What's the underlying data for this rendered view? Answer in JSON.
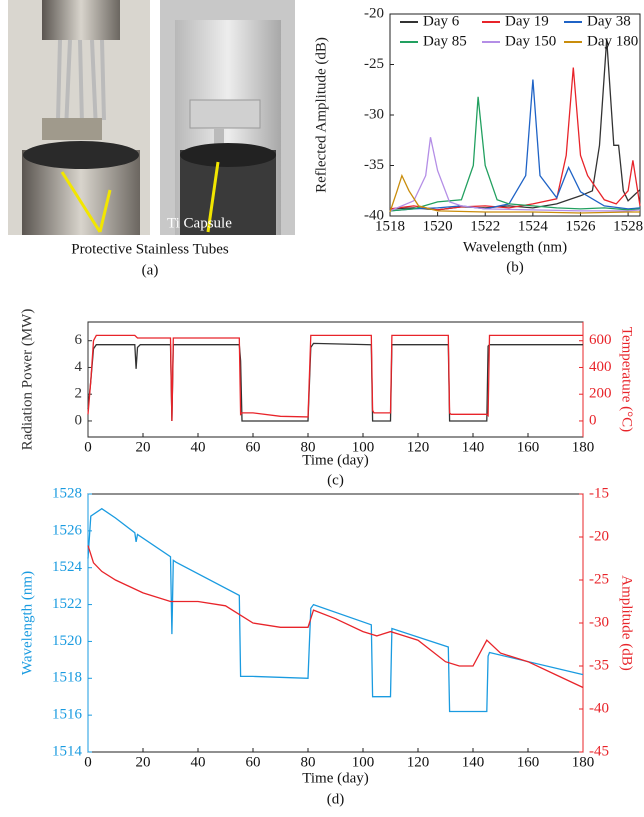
{
  "panel_a": {
    "labels": [
      "Protective Stainless Tubes",
      "Ti Capsule"
    ],
    "caption": "(a)"
  },
  "chart_data": [
    {
      "type": "line",
      "caption": "(b)",
      "xlabel": "Wavelength (nm)",
      "ylabel": "Reflected Amplitude (dB)",
      "legend": "top",
      "xlim": [
        1518,
        1528.5
      ],
      "xticks": [
        1518,
        1520,
        1522,
        1524,
        1526,
        1528
      ],
      "ylim": [
        -40,
        -20
      ],
      "yticks": [
        -40,
        -35,
        -30,
        -25,
        -20
      ],
      "series": [
        {
          "name": "Day 6",
          "color": "#333333",
          "x": [
            1518,
            1519,
            1520,
            1521,
            1522,
            1523,
            1524,
            1525,
            1526,
            1526.5,
            1526.8,
            1527.1,
            1527.4,
            1527.6,
            1527.8,
            1528,
            1528.5
          ],
          "values": [
            -39.3,
            -39.2,
            -39.4,
            -39.1,
            -39.2,
            -39.0,
            -39.2,
            -38.8,
            -38.0,
            -37.5,
            -33,
            -22.5,
            -33,
            -33,
            -37.5,
            -38.5,
            -37.4
          ]
        },
        {
          "name": "Day 19",
          "color": "#e8242a",
          "x": [
            1518,
            1519,
            1520,
            1521,
            1522,
            1523,
            1524,
            1525,
            1525.4,
            1525.7,
            1526,
            1526.3,
            1527,
            1527.5,
            1528,
            1528.2,
            1528.5
          ],
          "values": [
            -39.3,
            -39.0,
            -39.4,
            -39.1,
            -39.0,
            -39.2,
            -38.8,
            -38.3,
            -34,
            -25.3,
            -34,
            -36,
            -38.4,
            -38.8,
            -37.5,
            -34.5,
            -39
          ]
        },
        {
          "name": "Day 38",
          "color": "#1f63c6",
          "x": [
            1518,
            1519,
            1520,
            1521,
            1522,
            1523,
            1523.7,
            1524.0,
            1524.3,
            1525,
            1525.5,
            1526,
            1527,
            1528,
            1528.5
          ],
          "values": [
            -39.5,
            -39.3,
            -39.2,
            -39.0,
            -39.3,
            -38.8,
            -36,
            -26.5,
            -36,
            -38.2,
            -35.2,
            -37.6,
            -39,
            -39.3,
            -39.2
          ]
        },
        {
          "name": "Day 85",
          "color": "#22a060",
          "x": [
            1518,
            1519,
            1520,
            1521,
            1521.5,
            1521.7,
            1522,
            1522.5,
            1523,
            1524,
            1525,
            1526,
            1527,
            1528,
            1528.5
          ],
          "values": [
            -39.5,
            -39.3,
            -38.6,
            -38.4,
            -35,
            -28.2,
            -35,
            -38.4,
            -38.8,
            -39.0,
            -39.2,
            -39.3,
            -39.2,
            -39.4,
            -39.3
          ]
        },
        {
          "name": "Day 150",
          "color": "#b48ee6",
          "x": [
            1518,
            1519,
            1519.5,
            1519.7,
            1520,
            1520.5,
            1521,
            1522,
            1524,
            1526,
            1528,
            1528.5
          ],
          "values": [
            -39.5,
            -38.5,
            -36,
            -32.2,
            -35.5,
            -38.6,
            -39,
            -39.3,
            -39.4,
            -39.5,
            -39.5,
            -39.4
          ]
        },
        {
          "name": "Day 180",
          "color": "#c98d0c",
          "x": [
            1518,
            1518.3,
            1518.5,
            1518.8,
            1519.2,
            1520,
            1522,
            1524,
            1526,
            1528,
            1528.5
          ],
          "values": [
            -39.6,
            -37.5,
            -36,
            -37.5,
            -39,
            -39.5,
            -39.6,
            -39.6,
            -39.7,
            -39.6,
            -39.6
          ]
        }
      ]
    },
    {
      "type": "line",
      "caption": "(c)",
      "xlabel": "Time (day)",
      "ylabel": "Radiation Power (MW)",
      "y2label": "Temperature (°C)",
      "xlim": [
        0,
        180
      ],
      "xticks": [
        0,
        20,
        40,
        60,
        80,
        100,
        120,
        140,
        160,
        180
      ],
      "ylim": [
        -1.2,
        7.4
      ],
      "yticks": [
        0,
        2,
        4,
        6
      ],
      "y2lim": [
        -120,
        740
      ],
      "y2ticks": [
        0,
        200,
        400,
        600
      ],
      "series": [
        {
          "color": "#333333",
          "x": [
            0,
            1,
            2,
            3,
            5,
            17,
            17.5,
            18,
            19,
            30,
            30.5,
            31,
            55,
            55.5,
            56,
            80,
            81,
            82,
            103,
            103.5,
            110,
            110.5,
            111,
            131,
            131.5,
            145,
            145.5,
            146,
            180
          ],
          "values": [
            0.9,
            3,
            5.4,
            5.7,
            5.7,
            5.7,
            3.9,
            5.5,
            5.7,
            5.7,
            0,
            5.7,
            5.7,
            4.5,
            0,
            0,
            5.5,
            5.8,
            5.7,
            0,
            0,
            5.7,
            5.7,
            5.7,
            0,
            0,
            5.6,
            5.7,
            5.7
          ]
        },
        {
          "color": "#e8242a",
          "axis": "y2",
          "x": [
            0,
            1,
            2,
            3,
            5,
            17,
            18,
            30,
            30.5,
            31,
            55,
            55.5,
            56,
            60,
            70,
            80,
            81,
            82,
            103,
            103.5,
            104,
            110,
            110.5,
            111,
            131,
            131.5,
            132,
            145,
            145.5,
            146,
            180
          ],
          "values": [
            50,
            300,
            600,
            640,
            640,
            640,
            620,
            620,
            0,
            620,
            620,
            50,
            60,
            60,
            35,
            30,
            640,
            640,
            640,
            80,
            60,
            60,
            640,
            640,
            640,
            60,
            50,
            50,
            40,
            640,
            640
          ]
        }
      ]
    },
    {
      "type": "line",
      "caption": "(d)",
      "xlabel": "Time (day)",
      "ylabel": "Wavelength (nm)",
      "y2label": "Amplitude (dB)",
      "xlim": [
        0,
        180
      ],
      "xticks": [
        0,
        20,
        40,
        60,
        80,
        100,
        120,
        140,
        160,
        180
      ],
      "ylim": [
        1514,
        1528
      ],
      "yticks": [
        1514,
        1516,
        1518,
        1520,
        1522,
        1524,
        1526,
        1528
      ],
      "y2lim": [
        -45,
        -15
      ],
      "y2ticks": [
        -45,
        -40,
        -35,
        -30,
        -25,
        -20,
        -15
      ],
      "series": [
        {
          "color": "#1a9be0",
          "x": [
            0,
            1,
            5,
            10,
            17,
            17.5,
            18,
            30,
            30.5,
            31,
            32,
            55,
            55.5,
            60,
            80,
            81,
            82,
            103,
            103.5,
            110,
            110.5,
            131,
            131.5,
            145,
            145.5,
            146,
            180
          ],
          "values": [
            1524.5,
            1526.8,
            1527.2,
            1526.7,
            1525.9,
            1525.4,
            1525.8,
            1524.6,
            1520.4,
            1524.4,
            1524.3,
            1522.5,
            1518.1,
            1518.1,
            1518.0,
            1521.8,
            1522.0,
            1520.9,
            1517.0,
            1517.0,
            1520.7,
            1519.7,
            1516.2,
            1516.2,
            1519.2,
            1519.4,
            1518.2
          ]
        },
        {
          "color": "#e8242a",
          "axis": "y2",
          "x": [
            0,
            2,
            5,
            10,
            20,
            30,
            40,
            50,
            55,
            60,
            70,
            80,
            82,
            90,
            100,
            105,
            110,
            120,
            130,
            135,
            140,
            145,
            150,
            160,
            170,
            180
          ],
          "values": [
            -21,
            -23,
            -24,
            -25,
            -26.5,
            -27.5,
            -27.5,
            -28,
            -29,
            -30,
            -30.5,
            -30.5,
            -28.5,
            -29.5,
            -31,
            -31.5,
            -31,
            -32,
            -34.5,
            -35,
            -35,
            -32,
            -33.5,
            -34.5,
            -36,
            -37.5
          ]
        }
      ]
    }
  ]
}
